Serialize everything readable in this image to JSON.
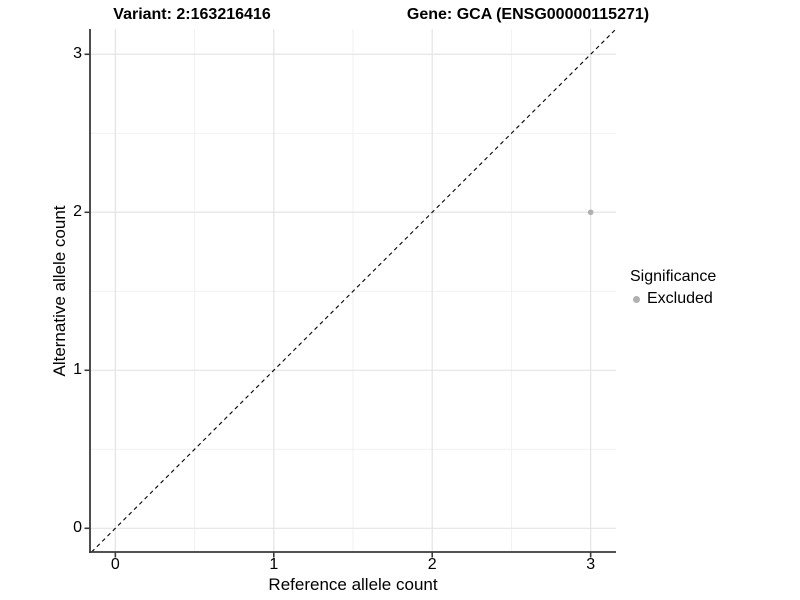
{
  "chart_data": {
    "type": "scatter",
    "titles": {
      "left": "Variant: 2:163216416",
      "right": "Gene: GCA (ENSG00000115271)"
    },
    "xlabel": "Reference allele count",
    "ylabel": "Alternative allele count",
    "xlim": [
      -0.16,
      3.16
    ],
    "ylim": [
      -0.15,
      3.16
    ],
    "xticks": [
      "0",
      "1",
      "2",
      "3"
    ],
    "yticks": [
      "0",
      "1",
      "2",
      "3"
    ],
    "grid": {
      "major": true,
      "minor": true
    },
    "points": [
      {
        "x": 3,
        "y": 2,
        "series": "Excluded"
      }
    ],
    "reference_line": {
      "type": "identity",
      "style": "dashed"
    },
    "legend": {
      "title": "Significance",
      "position": "right",
      "items": [
        {
          "label": "Excluded",
          "color": "#b0b0b0"
        }
      ]
    },
    "colors": {
      "point": "#b0b0b0",
      "grid_major": "#e4e4e4",
      "grid_minor": "#f1f1f1",
      "axis": "#3a3a3a",
      "reference_line": "#000000",
      "text": "#000000"
    }
  }
}
